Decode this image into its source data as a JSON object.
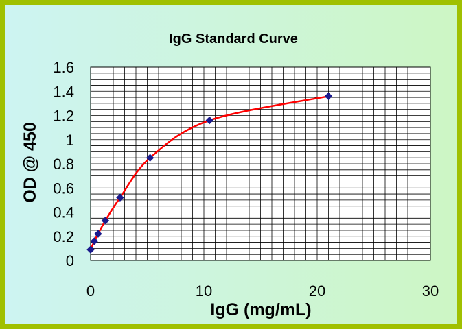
{
  "colors": {
    "frame": "#a0c000",
    "background_left": "#cdf4f2",
    "background_right": "#cdf6c4",
    "plot_area": "#ffffff",
    "grid": "#000000",
    "curve": "#ff0000",
    "marker": "#1a1a8c"
  },
  "chart_data": {
    "type": "scatter",
    "title": "IgG Standard Curve",
    "xlabel": "IgG (mg/mL)",
    "ylabel": "OD @ 450",
    "xlim": [
      0,
      30
    ],
    "ylim": [
      0,
      1.6
    ],
    "x_ticks": [
      "0",
      "10",
      "20",
      "30"
    ],
    "y_ticks": [
      "0",
      "0.2",
      "0.4",
      "0.6",
      "0.8",
      "1",
      "1.2",
      "1.4",
      "1.6"
    ],
    "grid": "on",
    "legend": "none",
    "series": [
      {
        "x": [
          0,
          0.33,
          0.66,
          1.3,
          2.6,
          5.25,
          10.5,
          21
        ],
        "y": [
          0.09,
          0.16,
          0.22,
          0.33,
          0.52,
          0.85,
          1.16,
          1.36
        ]
      }
    ]
  }
}
